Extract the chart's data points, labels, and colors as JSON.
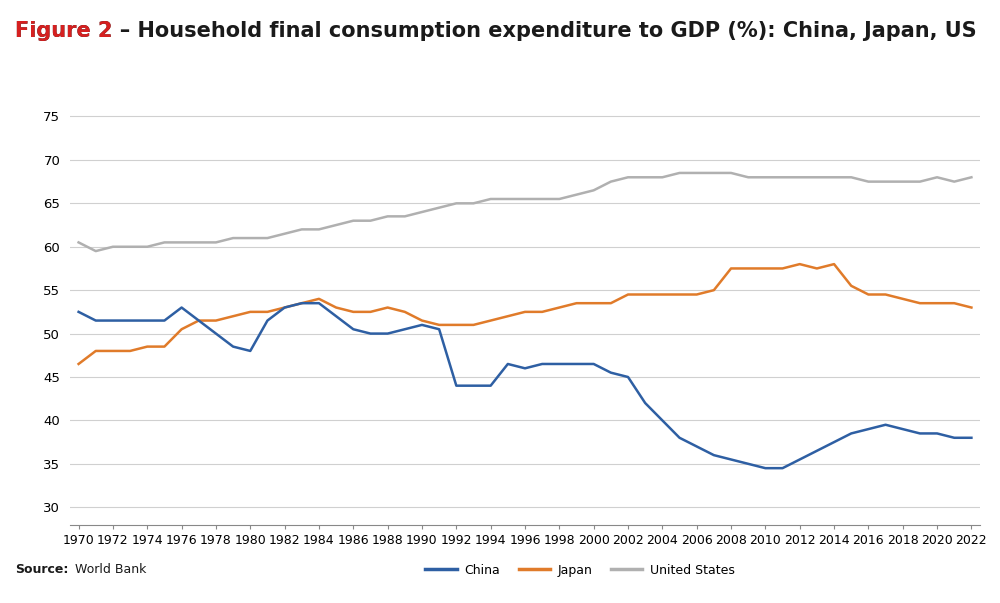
{
  "title_red": "Figure 2",
  "title_black": " – Household final consumption expenditure to GDP (%): China, Japan, US",
  "source_label": "Source:",
  "source_text": "World Bank",
  "years": [
    1970,
    1971,
    1972,
    1973,
    1974,
    1975,
    1976,
    1977,
    1978,
    1979,
    1980,
    1981,
    1982,
    1983,
    1984,
    1985,
    1986,
    1987,
    1988,
    1989,
    1990,
    1991,
    1992,
    1993,
    1994,
    1995,
    1996,
    1997,
    1998,
    1999,
    2000,
    2001,
    2002,
    2003,
    2004,
    2005,
    2006,
    2007,
    2008,
    2009,
    2010,
    2011,
    2012,
    2013,
    2014,
    2015,
    2016,
    2017,
    2018,
    2019,
    2020,
    2021,
    2022
  ],
  "china": [
    52.5,
    51.5,
    51.5,
    51.5,
    51.5,
    51.5,
    53.0,
    51.5,
    50.0,
    48.5,
    48.0,
    51.5,
    53.0,
    53.5,
    53.5,
    52.0,
    50.5,
    50.0,
    50.0,
    50.5,
    51.0,
    50.5,
    44.0,
    44.0,
    44.0,
    46.5,
    46.0,
    46.5,
    46.5,
    46.5,
    46.5,
    45.5,
    45.0,
    42.0,
    40.0,
    38.0,
    37.0,
    36.0,
    35.5,
    35.0,
    34.5,
    34.5,
    35.5,
    36.5,
    37.5,
    38.5,
    39.0,
    39.5,
    39.0,
    38.5,
    38.5,
    38.0,
    38.0
  ],
  "japan": [
    46.5,
    48.0,
    48.0,
    48.0,
    48.5,
    48.5,
    50.5,
    51.5,
    51.5,
    52.0,
    52.5,
    52.5,
    53.0,
    53.5,
    54.0,
    53.0,
    52.5,
    52.5,
    53.0,
    52.5,
    51.5,
    51.0,
    51.0,
    51.0,
    51.5,
    52.0,
    52.5,
    52.5,
    53.0,
    53.5,
    53.5,
    53.5,
    54.5,
    54.5,
    54.5,
    54.5,
    54.5,
    55.0,
    57.5,
    57.5,
    57.5,
    57.5,
    58.0,
    57.5,
    58.0,
    55.5,
    54.5,
    54.5,
    54.0,
    53.5,
    53.5,
    53.5,
    53.0
  ],
  "us": [
    60.5,
    59.5,
    60.0,
    60.0,
    60.0,
    60.5,
    60.5,
    60.5,
    60.5,
    61.0,
    61.0,
    61.0,
    61.5,
    62.0,
    62.0,
    62.5,
    63.0,
    63.0,
    63.5,
    63.5,
    64.0,
    64.5,
    65.0,
    65.0,
    65.5,
    65.5,
    65.5,
    65.5,
    65.5,
    66.0,
    66.5,
    67.5,
    68.0,
    68.0,
    68.0,
    68.5,
    68.5,
    68.5,
    68.5,
    68.0,
    68.0,
    68.0,
    68.0,
    68.0,
    68.0,
    68.0,
    67.5,
    67.5,
    67.5,
    67.5,
    68.0,
    67.5,
    68.0
  ],
  "china_color": "#2e5fa3",
  "japan_color": "#e07b2a",
  "us_color": "#b0b0b0",
  "line_width": 1.8,
  "ylim": [
    28,
    78
  ],
  "yticks": [
    30,
    35,
    40,
    45,
    50,
    55,
    60,
    65,
    70,
    75
  ],
  "background_color": "#ffffff",
  "plot_bg_color": "#ffffff",
  "grid_color": "#d0d0d0",
  "title_fontsize": 15,
  "tick_fontsize": 9.5
}
